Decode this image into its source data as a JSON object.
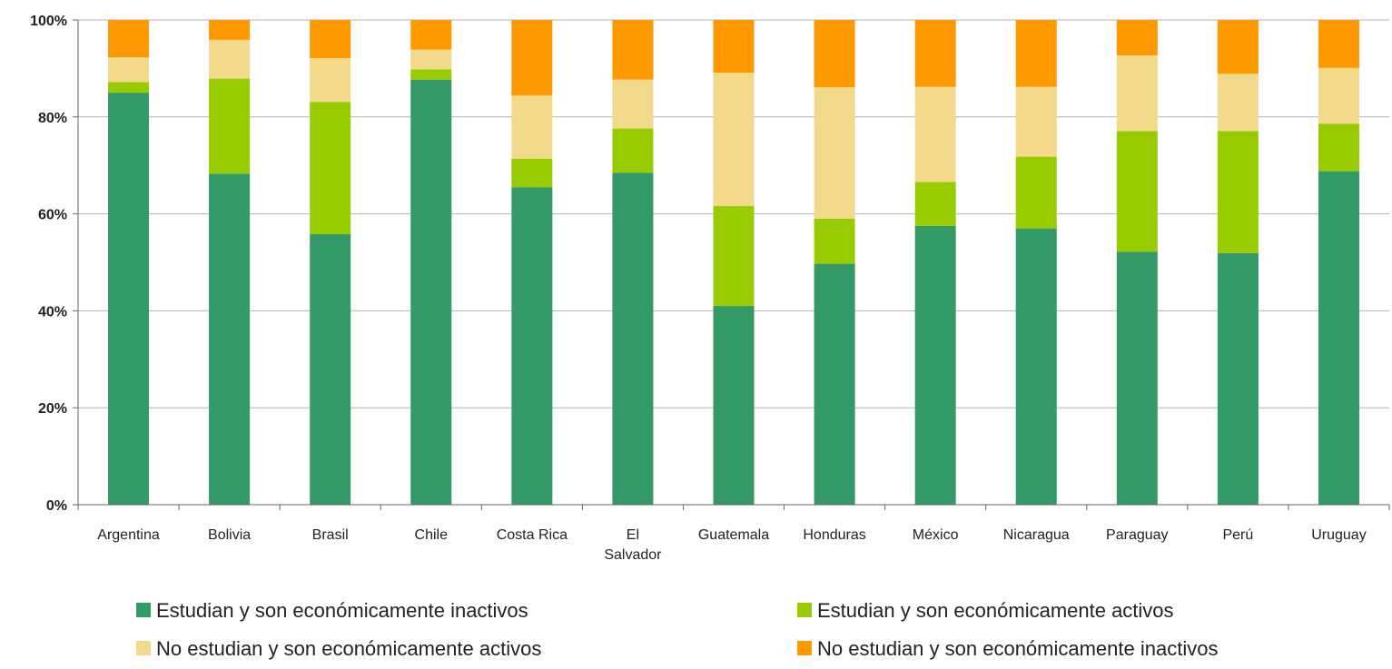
{
  "chart_data": {
    "type": "bar",
    "stacked": true,
    "title": "",
    "xlabel": "",
    "ylabel": "",
    "ylim": [
      0,
      100
    ],
    "yticks": [
      "0%",
      "20%",
      "40%",
      "60%",
      "80%",
      "100%"
    ],
    "yticks_values": [
      0,
      20,
      40,
      60,
      80,
      100
    ],
    "grid": true,
    "legend_position": "bottom",
    "categories": [
      "Argentina",
      "Bolivia",
      "Brasil",
      "Chile",
      "Costa Rica",
      "El Salvador",
      "Guatemala",
      "Honduras",
      "México",
      "Nicaragua",
      "Paraguay",
      "Perú",
      "Uruguay"
    ],
    "category_lines": [
      [
        "Argentina"
      ],
      [
        "Bolivia"
      ],
      [
        "Brasil"
      ],
      [
        "Chile"
      ],
      [
        "Costa Rica"
      ],
      [
        "El",
        "Salvador"
      ],
      [
        "Guatemala"
      ],
      [
        "Honduras"
      ],
      [
        "México"
      ],
      [
        "Nicaragua"
      ],
      [
        "Paraguay"
      ],
      [
        "Perú"
      ],
      [
        "Uruguay"
      ]
    ],
    "series": [
      {
        "name": "Estudian y son económicamente inactivos",
        "color": "#339966",
        "values": [
          85,
          68.3,
          55.8,
          87.7,
          65.5,
          68.5,
          41,
          49.7,
          57.5,
          57,
          52.2,
          51.9,
          68.8
        ]
      },
      {
        "name": "Estudian y son económicamente activos",
        "color": "#99cc00",
        "values": [
          2.2,
          19.6,
          27.3,
          2.1,
          5.9,
          9.1,
          20.6,
          9.3,
          9.1,
          14.8,
          24.9,
          25.2,
          9.8
        ]
      },
      {
        "name": "No estudian y son económicamente activos",
        "color": "#f2d98c",
        "values": [
          5.1,
          8,
          9,
          4.1,
          13,
          10.1,
          27.5,
          27.1,
          19.6,
          14.4,
          15.6,
          11.8,
          11.5
        ]
      },
      {
        "name": "No estudian y son económicamente inactivos",
        "color": "#ff9900",
        "values": [
          7.7,
          4.1,
          7.9,
          6.1,
          15.6,
          12.3,
          10.9,
          13.9,
          13.8,
          13.8,
          7.3,
          11.1,
          9.9
        ]
      }
    ]
  }
}
